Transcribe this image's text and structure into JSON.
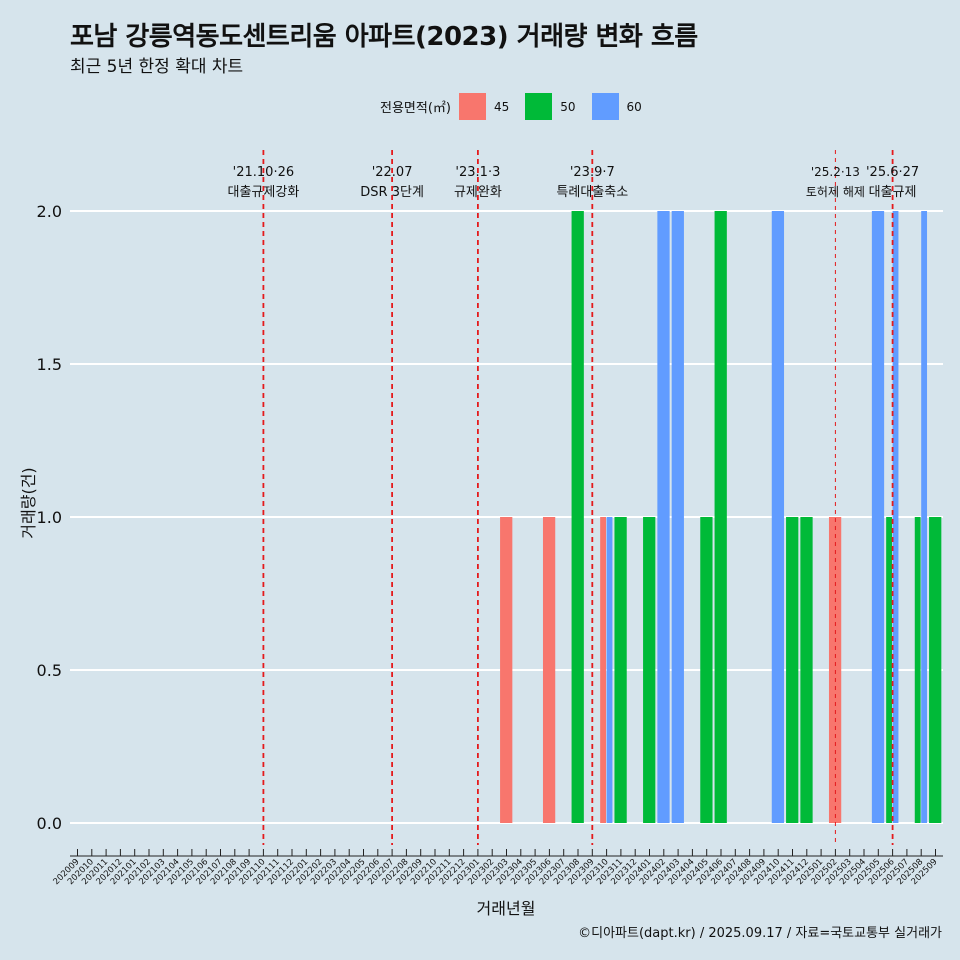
{
  "header": {
    "title": "포남 강릉역동도센트리움 아파트(2023) 거래량 변화 흐름",
    "subtitle": "최근 5년 한정 확대 차트"
  },
  "legend": {
    "title": "전용면적(㎡)",
    "items": [
      {
        "label": "45",
        "color": "#f8766d"
      },
      {
        "label": "50",
        "color": "#00ba38"
      },
      {
        "label": "60",
        "color": "#619cff"
      }
    ]
  },
  "caption": "©디아파트(dapt.kr) / 2025.09.17 / 자료=국토교통부 실거래가",
  "chart_data": {
    "type": "bar",
    "xlabel": "거래년월",
    "ylabel": "거래량(건)",
    "ylim": [
      0,
      2
    ],
    "yticks": [
      "0.0",
      "0.5",
      "1.0",
      "1.5",
      "2.0"
    ],
    "grid": "horizontal",
    "legend_position": "top",
    "categories": [
      "202009",
      "202010",
      "202011",
      "202012",
      "202101",
      "202102",
      "202103",
      "202104",
      "202105",
      "202106",
      "202107",
      "202108",
      "202109",
      "202110",
      "202111",
      "202112",
      "202201",
      "202202",
      "202203",
      "202204",
      "202205",
      "202206",
      "202207",
      "202208",
      "202209",
      "202210",
      "202211",
      "202212",
      "202301",
      "202302",
      "202303",
      "202304",
      "202305",
      "202306",
      "202307",
      "202308",
      "202309",
      "202310",
      "202311",
      "202312",
      "202401",
      "202402",
      "202403",
      "202404",
      "202405",
      "202406",
      "202407",
      "202408",
      "202409",
      "202410",
      "202411",
      "202412",
      "202501",
      "202502",
      "202503",
      "202504",
      "202505",
      "202506",
      "202507",
      "202508",
      "202509"
    ],
    "bars": [
      {
        "month": "202303",
        "area": "45",
        "value": 1
      },
      {
        "month": "202306",
        "area": "45",
        "value": 1
      },
      {
        "month": "202308",
        "area": "50",
        "value": 2
      },
      {
        "month": "202310",
        "area": "45",
        "value": 1
      },
      {
        "month": "202310",
        "area": "60",
        "value": 1
      },
      {
        "month": "202311",
        "area": "50",
        "value": 1
      },
      {
        "month": "202401",
        "area": "50",
        "value": 1
      },
      {
        "month": "202402",
        "area": "60",
        "value": 2
      },
      {
        "month": "202403",
        "area": "60",
        "value": 2
      },
      {
        "month": "202405",
        "area": "50",
        "value": 1
      },
      {
        "month": "202406",
        "area": "50",
        "value": 2
      },
      {
        "month": "202410",
        "area": "60",
        "value": 2
      },
      {
        "month": "202411",
        "area": "50",
        "value": 1
      },
      {
        "month": "202412",
        "area": "50",
        "value": 1
      },
      {
        "month": "202502",
        "area": "45",
        "value": 1
      },
      {
        "month": "202505",
        "area": "60",
        "value": 2
      },
      {
        "month": "202506",
        "area": "50",
        "value": 1
      },
      {
        "month": "202506",
        "area": "60",
        "value": 2
      },
      {
        "month": "202508",
        "area": "50",
        "value": 1
      },
      {
        "month": "202508",
        "area": "60",
        "value": 2
      },
      {
        "month": "202509",
        "area": "50",
        "value": 1
      }
    ],
    "events": [
      {
        "month": "202110",
        "date": "'21.10·26",
        "label": "대출규제강화",
        "style": "bold"
      },
      {
        "month": "202207",
        "date": "'22.07",
        "label": "DSR 3단계",
        "style": "bold"
      },
      {
        "month": "202301",
        "date": "'23.1·3",
        "label": "규제완화",
        "style": "bold"
      },
      {
        "month": "202309",
        "date": "'23.9·7",
        "label": "특례대출축소",
        "style": "bold"
      },
      {
        "month": "202502",
        "date": "'25.2·13",
        "label": "토허제 해제",
        "style": "thin"
      },
      {
        "month": "202506",
        "date": "'25.6·27",
        "label": "대출규제",
        "style": "bold"
      }
    ]
  }
}
